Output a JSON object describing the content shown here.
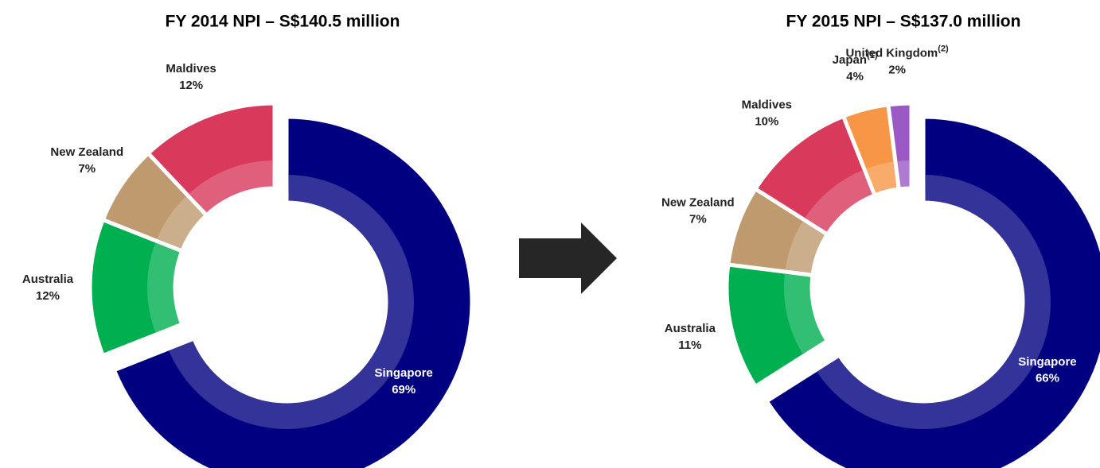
{
  "chart_data": [
    {
      "type": "pie",
      "title": "FY 2014 NPI – S$140.5 million",
      "categories": [
        "Singapore",
        "Australia",
        "New Zealand",
        "Maldives"
      ],
      "values": [
        69,
        12,
        7,
        12
      ],
      "value_labels": [
        "69%",
        "12%",
        "7%",
        "12%"
      ],
      "colors": [
        "#000080",
        "#00b050",
        "#bf9a6e",
        "#d9395a"
      ]
    },
    {
      "type": "pie",
      "title": "FY 2015 NPI – S$137.0 million",
      "categories": [
        "Singapore",
        "Australia",
        "New Zealand",
        "Maldives",
        "Japan",
        "United Kingdom"
      ],
      "notes": [
        null,
        null,
        null,
        null,
        "(1)",
        "(2)"
      ],
      "values": [
        66,
        11,
        7,
        10,
        4,
        2
      ],
      "value_labels": [
        "66%",
        "11%",
        "7%",
        "10%",
        "4%",
        "2%"
      ],
      "colors": [
        "#000080",
        "#00b050",
        "#bf9a6e",
        "#d9395a",
        "#f79646",
        "#9b59c6"
      ]
    }
  ]
}
